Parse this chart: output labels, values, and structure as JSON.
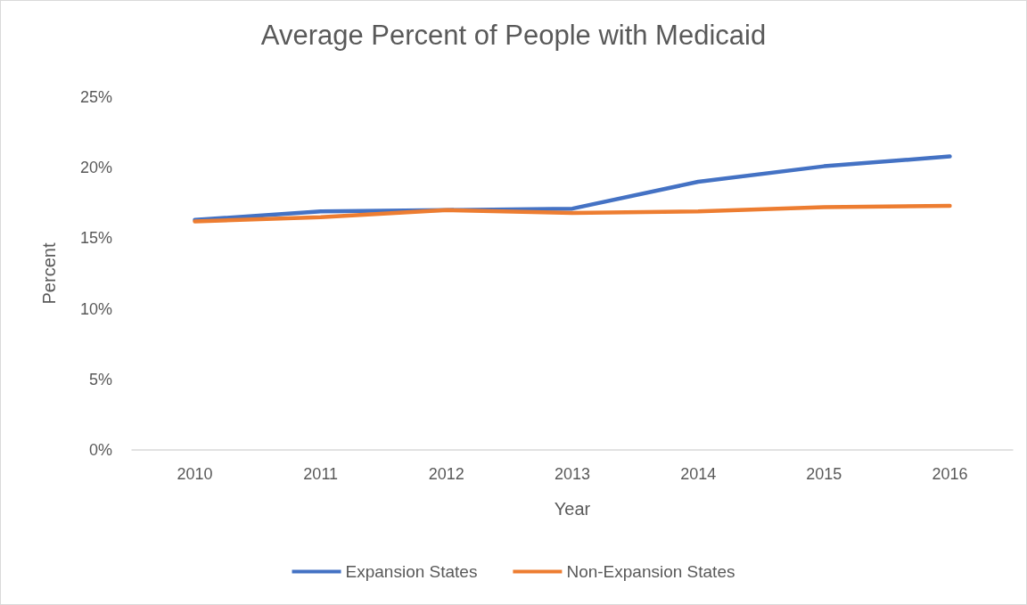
{
  "chart_data": {
    "type": "line",
    "title": "Average Percent of People with Medicaid",
    "xlabel": "Year",
    "ylabel": "Percent",
    "categories": [
      "2010",
      "2011",
      "2012",
      "2013",
      "2014",
      "2015",
      "2016"
    ],
    "series": [
      {
        "name": "Expansion States",
        "color": "#4472c4",
        "values": [
          16.3,
          16.9,
          17.0,
          17.1,
          19.0,
          20.1,
          20.8
        ]
      },
      {
        "name": "Non-Expansion States",
        "color": "#ed7d31",
        "values": [
          16.2,
          16.5,
          17.0,
          16.8,
          16.9,
          17.2,
          17.3
        ]
      }
    ],
    "ylim": [
      0,
      25
    ],
    "yticks": [
      {
        "value": 0,
        "label": "0%"
      },
      {
        "value": 5,
        "label": "5%"
      },
      {
        "value": 10,
        "label": "10%"
      },
      {
        "value": 15,
        "label": "15%"
      },
      {
        "value": 20,
        "label": "20%"
      },
      {
        "value": 25,
        "label": "25%"
      }
    ],
    "grid": false,
    "legend": "bottom",
    "marker": "none",
    "line_style": "solid"
  }
}
